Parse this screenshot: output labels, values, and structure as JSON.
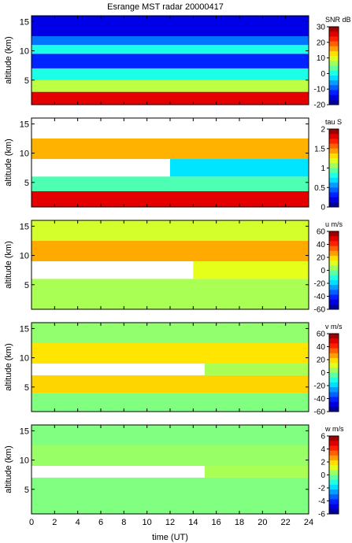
{
  "figure": {
    "title": "Esrange MST radar 20000417",
    "xlabel": "time (UT)",
    "x_ticks": [
      "0",
      "2",
      "4",
      "6",
      "8",
      "10",
      "12",
      "14",
      "16",
      "18",
      "20",
      "22",
      "24"
    ],
    "xlim": [
      0,
      24
    ]
  },
  "chart_data": [
    {
      "type": "heatmap",
      "ylabel": "altitude (km)",
      "ylim": [
        0.8,
        16
      ],
      "y_ticks": [
        "5",
        "10",
        "15"
      ],
      "colorbar": {
        "label": "SNR dB",
        "range": [
          -20,
          30
        ],
        "ticks": [
          "30",
          "20",
          "10",
          "0",
          "-10",
          "-20"
        ]
      },
      "palette": "jet",
      "layers": [
        {
          "y_range": [
            0.8,
            3.0
          ],
          "t_range": [
            0,
            24
          ],
          "value": 25
        },
        {
          "y_range": [
            3.0,
            5.0
          ],
          "t_range": [
            0,
            24
          ],
          "value": 8
        },
        {
          "y_range": [
            5.0,
            7.0
          ],
          "t_range": [
            0,
            24
          ],
          "value": 0
        },
        {
          "y_range": [
            7.0,
            9.5
          ],
          "t_range": [
            0,
            24
          ],
          "value": -12
        },
        {
          "y_range": [
            9.5,
            11.0
          ],
          "t_range": [
            0,
            24
          ],
          "value": 0
        },
        {
          "y_range": [
            11.0,
            12.5
          ],
          "t_range": [
            0,
            24
          ],
          "value": -8
        },
        {
          "y_range": [
            12.5,
            16.0
          ],
          "t_range": [
            0,
            24
          ],
          "value": -15
        }
      ]
    },
    {
      "type": "heatmap",
      "ylabel": "altitude (km)",
      "ylim": [
        0.8,
        16
      ],
      "y_ticks": [
        "5",
        "10",
        "15"
      ],
      "colorbar": {
        "label": "tau S",
        "range": [
          0,
          2
        ],
        "ticks": [
          "2",
          "1.5",
          "1",
          "0.5",
          "0"
        ]
      },
      "palette": "jet",
      "layers": [
        {
          "y_range": [
            0.8,
            3.5
          ],
          "t_range": [
            0,
            24
          ],
          "value": 1.8
        },
        {
          "y_range": [
            3.5,
            6.0
          ],
          "t_range": [
            0,
            24
          ],
          "value": 0.9
        },
        {
          "y_range": [
            6.0,
            9.0
          ],
          "t_range": [
            0,
            12
          ],
          "value": null
        },
        {
          "y_range": [
            6.0,
            9.0
          ],
          "t_range": [
            12,
            24
          ],
          "value": 0.7
        },
        {
          "y_range": [
            9.0,
            12.5
          ],
          "t_range": [
            0,
            24
          ],
          "value": 1.4
        },
        {
          "y_range": [
            12.5,
            16.0
          ],
          "t_range": [
            0,
            24
          ],
          "value": null
        }
      ]
    },
    {
      "type": "heatmap",
      "ylabel": "altitude (km)",
      "ylim": [
        0.8,
        16
      ],
      "y_ticks": [
        "5",
        "10",
        "15"
      ],
      "colorbar": {
        "label": "u m/s",
        "range": [
          -60,
          60
        ],
        "ticks": [
          "60",
          "40",
          "20",
          "0",
          "-20",
          "-40",
          "-60"
        ]
      },
      "palette": "jet",
      "layers": [
        {
          "y_range": [
            0.8,
            6.0
          ],
          "t_range": [
            0,
            24
          ],
          "value": 5
        },
        {
          "y_range": [
            6.0,
            9.0
          ],
          "t_range": [
            0,
            14
          ],
          "value": null
        },
        {
          "y_range": [
            6.0,
            9.0
          ],
          "t_range": [
            14,
            24
          ],
          "value": 12
        },
        {
          "y_range": [
            9.0,
            12.5
          ],
          "t_range": [
            0,
            24
          ],
          "value": 25
        },
        {
          "y_range": [
            12.5,
            16.0
          ],
          "t_range": [
            0,
            24
          ],
          "value": 10
        }
      ]
    },
    {
      "type": "heatmap",
      "ylabel": "altitude (km)",
      "ylim": [
        0.8,
        16
      ],
      "y_ticks": [
        "5",
        "10",
        "15"
      ],
      "colorbar": {
        "label": "v m/s",
        "range": [
          -60,
          60
        ],
        "ticks": [
          "60",
          "40",
          "20",
          "0",
          "-20",
          "-40",
          "-60"
        ]
      },
      "palette": "jet",
      "layers": [
        {
          "y_range": [
            0.8,
            4.0
          ],
          "t_range": [
            0,
            24
          ],
          "value": 0
        },
        {
          "y_range": [
            4.0,
            7.0
          ],
          "t_range": [
            0,
            24
          ],
          "value": 20
        },
        {
          "y_range": [
            7.0,
            9.0
          ],
          "t_range": [
            0,
            15
          ],
          "value": null
        },
        {
          "y_range": [
            7.0,
            9.0
          ],
          "t_range": [
            15,
            24
          ],
          "value": 5
        },
        {
          "y_range": [
            9.0,
            12.5
          ],
          "t_range": [
            0,
            24
          ],
          "value": 18
        },
        {
          "y_range": [
            12.5,
            16.0
          ],
          "t_range": [
            0,
            24
          ],
          "value": 2
        }
      ]
    },
    {
      "type": "heatmap",
      "ylabel": "altitude (km)",
      "ylim": [
        0.8,
        16
      ],
      "y_ticks": [
        "5",
        "10",
        "15"
      ],
      "colorbar": {
        "label": "w m/s",
        "range": [
          -6,
          6
        ],
        "ticks": [
          "6",
          "4",
          "2",
          "0",
          "-2",
          "-4",
          "-6"
        ]
      },
      "palette": "jet",
      "layers": [
        {
          "y_range": [
            0.8,
            7.0
          ],
          "t_range": [
            0,
            24
          ],
          "value": 0
        },
        {
          "y_range": [
            7.0,
            9.0
          ],
          "t_range": [
            0,
            15
          ],
          "value": null
        },
        {
          "y_range": [
            7.0,
            9.0
          ],
          "t_range": [
            15,
            24
          ],
          "value": 0.5
        },
        {
          "y_range": [
            9.0,
            12.5
          ],
          "t_range": [
            0,
            24
          ],
          "value": 0.3
        },
        {
          "y_range": [
            12.5,
            16.0
          ],
          "t_range": [
            0,
            24
          ],
          "value": 0
        }
      ]
    }
  ]
}
